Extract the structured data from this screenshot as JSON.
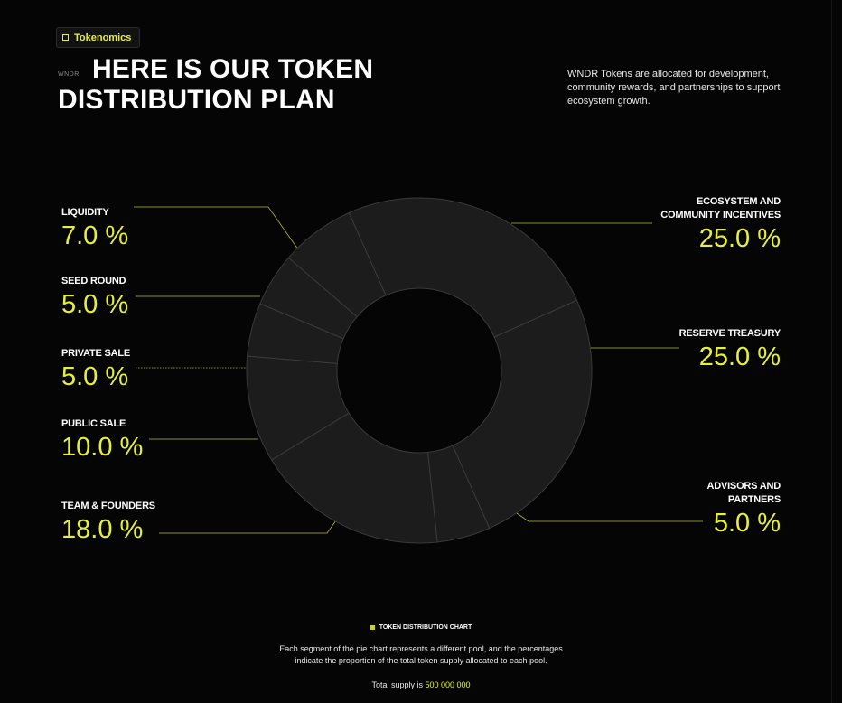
{
  "badge": {
    "label": "Tokenomics"
  },
  "header": {
    "tag": "WNDR",
    "title": "HERE IS OUR TOKEN DISTRIBUTION PLAN",
    "intro": "WNDR Tokens are allocated for development, community rewards, and partnerships to support ecosystem growth."
  },
  "chart_data": {
    "type": "pie",
    "style": "donut",
    "categories": [
      "Ecosystem and Community Incentives",
      "Reserve Treasury",
      "Advisors and Partners",
      "Team & Founders",
      "Public Sale",
      "Private Sale",
      "Seed Round",
      "Liquidity"
    ],
    "values": [
      25.0,
      25.0,
      5.0,
      18.0,
      10.0,
      5.0,
      5.0,
      7.0
    ],
    "slice_color": "#1c1c1c",
    "accent": "#e6f03a"
  },
  "labels": {
    "liquidity": {
      "name": "LIQUIDITY",
      "pct": "7.0 %"
    },
    "seed": {
      "name": "SEED ROUND",
      "pct": "5.0 %"
    },
    "private": {
      "name": "PRIVATE SALE",
      "pct": "5.0 %"
    },
    "public": {
      "name": "PUBLIC SALE",
      "pct": "10.0 %"
    },
    "team": {
      "name": "TEAM & FOUNDERS",
      "pct": "18.0 %"
    },
    "ecosystem": {
      "name": "ECOSYSTEM AND COMMUNITY INCENTIVES",
      "pct": "25.0 %"
    },
    "reserve": {
      "name": "RESERVE TREASURY",
      "pct": "25.0 %"
    },
    "advisors": {
      "name": "ADVISORS AND PARTNERS",
      "pct": "5.0 %"
    }
  },
  "footer": {
    "chart_caption": "TOKEN DISTRIBUTION CHART",
    "desc_line1": "Each segment of the pie chart represents a different pool, and the percentages",
    "desc_line2": "indicate the proportion of the total token supply allocated to each pool.",
    "supply_label": "Total supply is",
    "supply_value": "500 000 000"
  }
}
